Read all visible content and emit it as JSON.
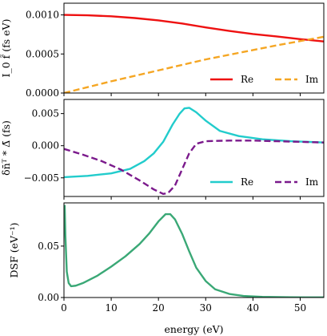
{
  "chart_data": [
    {
      "type": "line",
      "ylabel": "I_0 f̃ (fs eV)",
      "xlim": [
        0,
        55
      ],
      "ylim": [
        0,
        0.00115
      ],
      "yticks": [
        0,
        0.0005,
        0.001
      ],
      "ytick_labels": [
        "0.0000",
        "0.0005",
        "0.0010"
      ],
      "legend": "bottom-right",
      "series": [
        {
          "name": "Re",
          "color": "#ee1111",
          "style": "solid",
          "points": [
            [
              0,
              0.001
            ],
            [
              5,
              0.000995
            ],
            [
              10,
              0.000982
            ],
            [
              15,
              0.00096
            ],
            [
              20,
              0.00093
            ],
            [
              25,
              0.00089
            ],
            [
              30,
              0.00084
            ],
            [
              35,
              0.000795
            ],
            [
              40,
              0.000755
            ],
            [
              45,
              0.000725
            ],
            [
              50,
              0.00069
            ],
            [
              55,
              0.00066
            ]
          ]
        },
        {
          "name": "Im",
          "color": "#f5a623",
          "style": "dashed",
          "points": [
            [
              0,
              0.0
            ],
            [
              5,
              7.5e-05
            ],
            [
              10,
              0.00015
            ],
            [
              15,
              0.00022
            ],
            [
              20,
              0.00029
            ],
            [
              25,
              0.00036
            ],
            [
              30,
              0.00043
            ],
            [
              35,
              0.00049
            ],
            [
              40,
              0.00055
            ],
            [
              45,
              0.00061
            ],
            [
              50,
              0.000665
            ],
            [
              55,
              0.00072
            ]
          ]
        }
      ]
    },
    {
      "type": "line",
      "ylabel": "δn̄ᵀ * Δ̄ (fs)",
      "xlim": [
        0,
        55
      ],
      "ylim": [
        -0.0079,
        0.0072
      ],
      "yticks": [
        -0.005,
        0.0,
        0.005
      ],
      "ytick_labels": [
        "−0.005",
        "0.000",
        "0.005"
      ],
      "legend": "bottom-right",
      "series": [
        {
          "name": "Re",
          "color": "#22cccc",
          "style": "solid",
          "points": [
            [
              0,
              -0.0049
            ],
            [
              5,
              -0.0047
            ],
            [
              10,
              -0.0043
            ],
            [
              14,
              -0.0036
            ],
            [
              17,
              -0.0024
            ],
            [
              19,
              -0.0012
            ],
            [
              21,
              0.0006
            ],
            [
              23,
              0.0033
            ],
            [
              24.5,
              0.005
            ],
            [
              25.5,
              0.0058
            ],
            [
              26.5,
              0.0059
            ],
            [
              28,
              0.0052
            ],
            [
              30,
              0.0039
            ],
            [
              33,
              0.0023
            ],
            [
              37,
              0.0015
            ],
            [
              42,
              0.001
            ],
            [
              48,
              0.0007
            ],
            [
              55,
              0.0005
            ]
          ]
        },
        {
          "name": "Im",
          "color": "#7b1a8c",
          "style": "dashed",
          "points": [
            [
              0,
              -0.0005
            ],
            [
              4,
              -0.0014
            ],
            [
              8,
              -0.0024
            ],
            [
              12,
              -0.0037
            ],
            [
              16,
              -0.0054
            ],
            [
              19,
              -0.0068
            ],
            [
              21,
              -0.0075
            ],
            [
              22,
              -0.0074
            ],
            [
              23.5,
              -0.0062
            ],
            [
              25,
              -0.0037
            ],
            [
              26.5,
              -0.0012
            ],
            [
              28,
              0.0003
            ],
            [
              30,
              0.0007
            ],
            [
              35,
              0.0008
            ],
            [
              40,
              0.0008
            ],
            [
              45,
              0.0007
            ],
            [
              50,
              0.0006
            ],
            [
              55,
              0.0005
            ]
          ]
        }
      ]
    },
    {
      "type": "line",
      "xlabel": "energy (eV)",
      "ylabel": "DSF (eV⁻¹)",
      "xlim": [
        0,
        55
      ],
      "ylim": [
        0,
        0.092
      ],
      "yticks": [
        0,
        0.05
      ],
      "ytick_labels": [
        "0.00",
        "0.05"
      ],
      "xticks": [
        0,
        10,
        20,
        30,
        40,
        50
      ],
      "xtick_labels": [
        "0",
        "10",
        "20",
        "30",
        "40",
        "50"
      ],
      "series": [
        {
          "color": "#3aa876",
          "style": "solid",
          "points": [
            [
              0.15,
              0.09
            ],
            [
              0.3,
              0.06
            ],
            [
              0.6,
              0.025
            ],
            [
              1,
              0.014
            ],
            [
              1.5,
              0.011
            ],
            [
              2.5,
              0.0115
            ],
            [
              4,
              0.014
            ],
            [
              7,
              0.021
            ],
            [
              10,
              0.03
            ],
            [
              13,
              0.04
            ],
            [
              16,
              0.052
            ],
            [
              18,
              0.062
            ],
            [
              20,
              0.074
            ],
            [
              21.5,
              0.081
            ],
            [
              22.5,
              0.081
            ],
            [
              23.5,
              0.076
            ],
            [
              25,
              0.062
            ],
            [
              26.5,
              0.045
            ],
            [
              28,
              0.029
            ],
            [
              30,
              0.016
            ],
            [
              32,
              0.008
            ],
            [
              35,
              0.0035
            ],
            [
              38,
              0.0015
            ],
            [
              42,
              0.0006
            ],
            [
              48,
              0.0002
            ],
            [
              55,
              0.0001
            ]
          ]
        }
      ]
    }
  ]
}
